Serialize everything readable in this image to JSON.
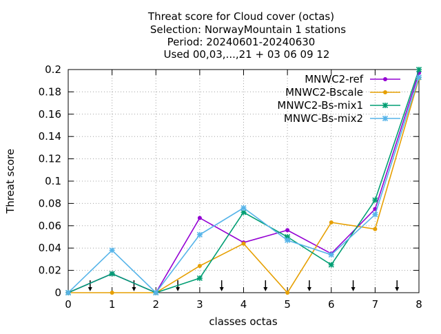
{
  "chart_data": {
    "type": "line",
    "title_lines": [
      "Threat score  for Cloud cover (octas)",
      "Selection: NorwayMountain      1 stations",
      "Period: 20240601-20240630",
      "Used 00,03,...,21 + 03 06 09 12"
    ],
    "xlabel": "classes octas",
    "ylabel": "Threat score",
    "xlim": [
      0,
      8
    ],
    "ylim": [
      0,
      0.2
    ],
    "x_ticks": [
      0,
      1,
      2,
      3,
      4,
      5,
      6,
      7,
      8
    ],
    "x_tick_labels": [
      "0",
      "1",
      "2",
      "3",
      "4",
      "5",
      "6",
      "7",
      "8"
    ],
    "y_ticks": [
      0,
      0.02,
      0.04,
      0.06,
      0.08,
      0.1,
      0.12,
      0.14,
      0.16,
      0.18,
      0.2
    ],
    "y_tick_labels": [
      "0",
      "0.02",
      "0.04",
      "0.06",
      "0.08",
      "0.1",
      "0.12",
      "0.14",
      "0.16",
      "0.18",
      "0.2"
    ],
    "grid": true,
    "legend_position": "top-right",
    "x": [
      0,
      1,
      2,
      3,
      4,
      5,
      6,
      7,
      8
    ],
    "series": [
      {
        "name": "MNWC2-ref",
        "color": "#9400d3",
        "marker": "circle",
        "values": [
          0,
          0.017,
          0,
          0.067,
          0.045,
          0.056,
          0.035,
          0.075,
          0.197
        ]
      },
      {
        "name": "MNWC2-Bscale",
        "color": "#e69f00",
        "marker": "circle",
        "values": [
          0,
          0,
          0,
          0.024,
          0.044,
          0,
          0.063,
          0.057,
          0.192
        ]
      },
      {
        "name": "MNWC2-Bs-mix1",
        "color": "#009e73",
        "marker": "x",
        "values": [
          0,
          0.017,
          0,
          0.013,
          0.072,
          0.05,
          0.025,
          0.083,
          0.2
        ]
      },
      {
        "name": "MNWC-Bs-mix2",
        "color": "#56b4e9",
        "marker": "x",
        "values": [
          0,
          0.038,
          0,
          0.052,
          0.076,
          0.047,
          0.034,
          0.07,
          0.193
        ]
      }
    ],
    "arrow_x": [
      0.5,
      1.5,
      2.5,
      3.5,
      4.5,
      5.5,
      6.5,
      7.5
    ]
  }
}
